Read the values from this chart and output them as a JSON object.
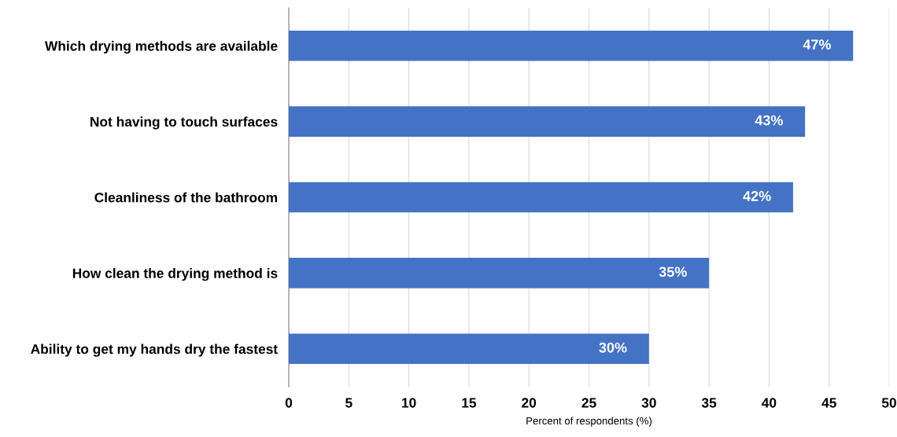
{
  "chart_data": {
    "type": "bar",
    "orientation": "horizontal",
    "xlabel": "Percent of respondents (%)",
    "categories": [
      "Which drying methods are available",
      "Not having to touch surfaces",
      "Cleanliness of the bathroom",
      "How clean the drying method is",
      "Ability to get my hands dry the fastest"
    ],
    "values": [
      47,
      43,
      42,
      35,
      30
    ],
    "value_labels": [
      "47%",
      "43%",
      "42%",
      "35%",
      "30%"
    ],
    "color": "#4472c4",
    "xlim": [
      0,
      50
    ],
    "xticks": [
      0,
      5,
      10,
      15,
      20,
      25,
      30,
      35,
      40,
      45,
      50
    ],
    "grid": "x",
    "legend": false
  }
}
